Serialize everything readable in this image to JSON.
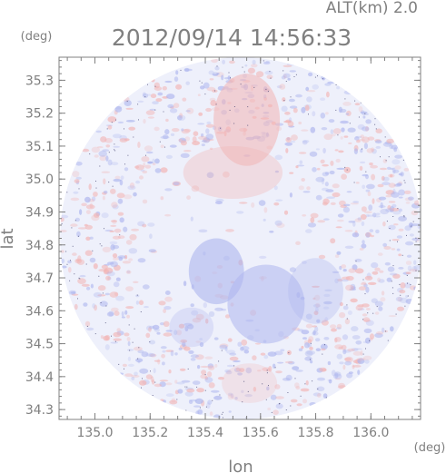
{
  "header": {
    "altitude_label": "ALT(km) 2.0",
    "timestamp": "2012/09/14 14:56:33"
  },
  "chart_data": {
    "type": "heatmap",
    "title": "2012/09/14 14:56:33",
    "subtitle": "ALT(km) 2.0",
    "xlabel": "lon",
    "ylabel": "lat",
    "x_unit": "(deg)",
    "y_unit": "(deg)",
    "xlim": [
      134.87,
      136.18
    ],
    "ylim": [
      34.27,
      35.37
    ],
    "x_ticks": [
      135.0,
      135.2,
      135.4,
      135.6,
      135.8,
      136.0
    ],
    "x_tick_labels": [
      "135.0",
      "135.2",
      "135.4",
      "135.6",
      "135.8",
      "136.0"
    ],
    "y_ticks": [
      34.3,
      34.4,
      34.5,
      34.6,
      34.7,
      34.8,
      34.9,
      35.0,
      35.1,
      35.2,
      35.3
    ],
    "y_tick_labels": [
      "34.3",
      "34.4",
      "34.5",
      "34.6",
      "34.7",
      "34.8",
      "34.9",
      "35.0",
      "35.1",
      "35.2",
      "35.3"
    ],
    "grid": false,
    "legend": "none",
    "data_domain": {
      "shape": "circle",
      "center": [
        135.53,
        34.82
      ],
      "radius_lon": 0.64,
      "radius_lat": 0.55
    },
    "field_regions": [
      {
        "lon": 135.55,
        "lat": 35.18,
        "r_lon": 0.12,
        "r_lat": 0.14,
        "tone": "warm",
        "strength": 0.55
      },
      {
        "lon": 135.5,
        "lat": 35.02,
        "r_lon": 0.18,
        "r_lat": 0.08,
        "tone": "warm",
        "strength": 0.35
      },
      {
        "lon": 135.44,
        "lat": 34.72,
        "r_lon": 0.1,
        "r_lat": 0.1,
        "tone": "cool",
        "strength": 0.6
      },
      {
        "lon": 135.62,
        "lat": 34.62,
        "r_lon": 0.14,
        "r_lat": 0.12,
        "tone": "cool",
        "strength": 0.55
      },
      {
        "lon": 135.8,
        "lat": 34.66,
        "r_lon": 0.1,
        "r_lat": 0.1,
        "tone": "cool",
        "strength": 0.35
      },
      {
        "lon": 135.35,
        "lat": 34.55,
        "r_lon": 0.08,
        "r_lat": 0.06,
        "tone": "cool",
        "strength": 0.3
      },
      {
        "lon": 135.56,
        "lat": 34.38,
        "r_lon": 0.1,
        "r_lat": 0.06,
        "tone": "warm",
        "strength": 0.25
      }
    ],
    "colors": {
      "background": "#ffffff",
      "axes": "#808080",
      "neutral": "#eef0fb",
      "warm": "#f2b4b4",
      "cool": "#aeb6ee",
      "speckle": "#3a3a6a"
    }
  }
}
